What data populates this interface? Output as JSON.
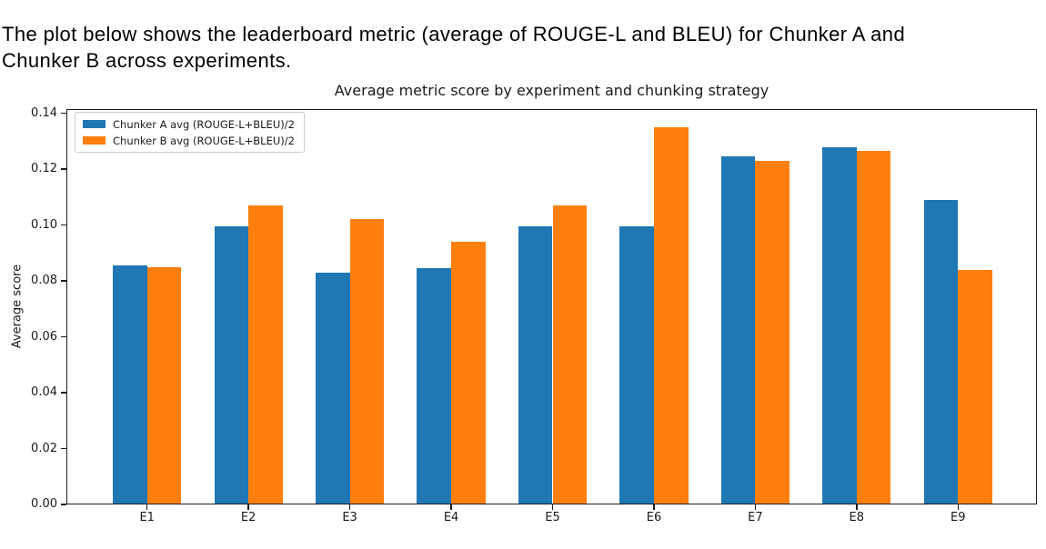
{
  "intro_text": "The plot below shows the leaderboard metric (average of ROUGE-L and BLEU) for Chunker A and Chunker B across experiments.",
  "chart_data": {
    "type": "bar",
    "title": "Average metric score by experiment and chunking strategy",
    "xlabel": "",
    "ylabel": "Average score",
    "categories": [
      "E1",
      "E2",
      "E3",
      "E4",
      "E5",
      "E6",
      "E7",
      "E8",
      "E9"
    ],
    "series": [
      {
        "name": "Chunker A avg (ROUGE-L+BLEU)/2",
        "color": "#1f77b4",
        "values": [
          0.0855,
          0.0995,
          0.083,
          0.0845,
          0.0995,
          0.0995,
          0.1245,
          0.128,
          0.109
        ]
      },
      {
        "name": "Chunker B avg (ROUGE-L+BLEU)/2",
        "color": "#ff7f0e",
        "values": [
          0.085,
          0.107,
          0.102,
          0.094,
          0.107,
          0.135,
          0.123,
          0.1265,
          0.084
        ]
      }
    ],
    "ylim": [
      0,
      0.1415
    ],
    "ytick_values": [
      0.0,
      0.02,
      0.04,
      0.06,
      0.08,
      0.1,
      0.12,
      0.14
    ],
    "ytick_labels": [
      "0.00",
      "0.02",
      "0.04",
      "0.06",
      "0.08",
      "0.10",
      "0.12",
      "0.14"
    ],
    "legend_position": "upper left",
    "grid": false
  }
}
